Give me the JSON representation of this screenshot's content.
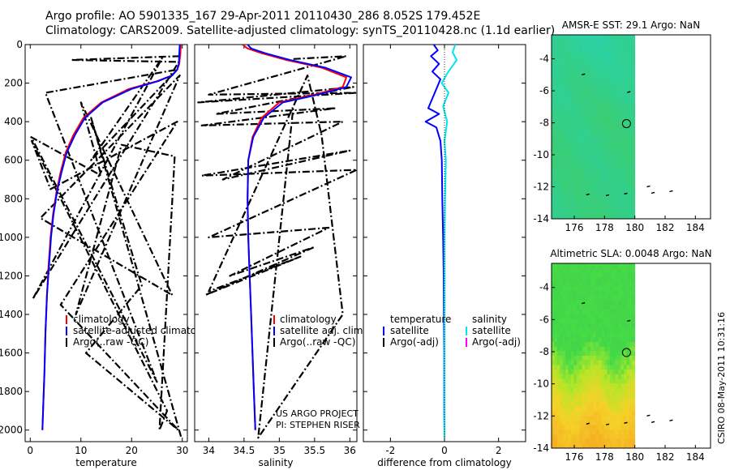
{
  "header": {
    "line1": "Argo profile: AO 5901335_167 29-Apr-2011 20110430_286 8.052S 179.452E",
    "line2": "Climatology: CARS2009. Satellite-adjusted climatology: synTS_20110428.nc (1.1d earlier)"
  },
  "footer": {
    "project": "US ARGO PROJECT",
    "pi": "PI: STEPHEN RISER",
    "stamp": "CSIRO 08-May-2011 10:31:16"
  },
  "colors": {
    "climatology": "#ff0000",
    "satellite": "#0000ff",
    "argo": "#000000",
    "sat_salinity": "#00e5ee",
    "argo_salinity": "#ff00ff"
  },
  "chart_data": [
    {
      "id": "temperature",
      "type": "line",
      "xlabel": "temperature",
      "xlim": [
        -1,
        31
      ],
      "ylim": [
        2060,
        0
      ],
      "xticks": [
        0,
        10,
        20,
        30
      ],
      "yticks": [
        0,
        200,
        400,
        600,
        800,
        1000,
        1200,
        1400,
        1600,
        1800,
        2000
      ],
      "legend": [
        "climatology",
        "satellite-adjusted climatology",
        "Argo(..raw -QC)"
      ],
      "series": [
        {
          "name": "climatology",
          "color": "#ff0000",
          "x": [
            29.7,
            29.6,
            29.4,
            29.0,
            28.0,
            25.0,
            19.5,
            14.0,
            10.5,
            8.5,
            7.0,
            6.0,
            5.2,
            4.5,
            4.0,
            3.6,
            3.3,
            3.0,
            2.8,
            2.6,
            2.4
          ],
          "y": [
            0,
            50,
            100,
            130,
            160,
            190,
            230,
            300,
            380,
            470,
            560,
            660,
            760,
            880,
            1000,
            1150,
            1300,
            1500,
            1700,
            1850,
            2000
          ]
        },
        {
          "name": "satellite-adjusted climatology",
          "color": "#0000ff",
          "x": [
            29.5,
            29.4,
            29.3,
            29.0,
            28.0,
            25.2,
            20.0,
            14.3,
            10.8,
            8.8,
            7.2,
            6.2,
            5.3,
            4.6,
            4.1,
            3.7,
            3.3,
            3.0,
            2.8,
            2.6,
            2.4
          ],
          "y": [
            0,
            50,
            100,
            130,
            160,
            190,
            230,
            300,
            380,
            470,
            560,
            660,
            760,
            880,
            1000,
            1150,
            1300,
            1500,
            1700,
            1850,
            2000
          ]
        },
        {
          "name": "Argo(..raw -QC)",
          "color": "#000000",
          "x": [
            29.5,
            8.0,
            29.3,
            0.5,
            26.0,
            12.0,
            29.0,
            3.0,
            25.0,
            0.2,
            14.0,
            10.0,
            28.0,
            2.0,
            29.5,
            9.0,
            18.0,
            28.5,
            25.5,
            27.0,
            0.3,
            4.0,
            29.0,
            6.0,
            29.2,
            11.0,
            22.0,
            12.0,
            29.8
          ],
          "y": [
            60,
            80,
            90,
            1320,
            70,
            600,
            130,
            250,
            1750,
            480,
            680,
            300,
            1300,
            900,
            160,
            1400,
            520,
            580,
            2000,
            1900,
            500,
            750,
            400,
            1350,
            2000,
            1600,
            1250,
            380,
            2040
          ]
        }
      ]
    },
    {
      "id": "salinity",
      "type": "line",
      "xlabel": "salinity",
      "xlim": [
        33.8,
        36.1
      ],
      "ylim": [
        2060,
        0
      ],
      "xticks": [
        34,
        34.5,
        35,
        35.5,
        36
      ],
      "xtick_labels": [
        "34",
        "34.5",
        "35",
        "35.5",
        "36"
      ],
      "legend": [
        "climatology",
        "satellite adj. clim.",
        "Argo(..raw -QC)"
      ],
      "series": [
        {
          "name": "climatology",
          "color": "#ff0000",
          "x": [
            34.48,
            34.55,
            34.75,
            35.1,
            35.6,
            35.95,
            35.9,
            35.5,
            35.0,
            34.75,
            34.62,
            34.56,
            34.55,
            34.56,
            34.58,
            34.6,
            34.62,
            34.64,
            34.66
          ],
          "y": [
            0,
            20,
            45,
            80,
            120,
            170,
            220,
            260,
            300,
            380,
            480,
            600,
            800,
            1000,
            1200,
            1400,
            1600,
            1800,
            2000
          ]
        },
        {
          "name": "satellite adj. clim.",
          "color": "#0000ff",
          "x": [
            34.55,
            34.6,
            34.8,
            35.15,
            35.65,
            36.02,
            35.95,
            35.55,
            35.05,
            34.78,
            34.63,
            34.56,
            34.55,
            34.56,
            34.58,
            34.6,
            34.62,
            34.64,
            34.66
          ],
          "y": [
            0,
            20,
            45,
            80,
            120,
            170,
            220,
            260,
            300,
            380,
            480,
            600,
            800,
            1000,
            1200,
            1400,
            1600,
            1800,
            2000
          ]
        },
        {
          "name": "Argo(..raw -QC)",
          "color": "#000000",
          "x": [
            35.2,
            35.95,
            34.0,
            36.1,
            33.85,
            36.05,
            34.1,
            35.8,
            33.9,
            35.9,
            34.2,
            36.0,
            33.9,
            36.1,
            34.0,
            35.7,
            34.3,
            35.5,
            33.95,
            35.3,
            34.0,
            35.4,
            35.6,
            35.9,
            34.7,
            35.2
          ],
          "y": [
            75,
            60,
            260,
            250,
            300,
            220,
            360,
            330,
            420,
            400,
            700,
            550,
            680,
            650,
            1000,
            950,
            1200,
            1050,
            1300,
            1100,
            1280,
            160,
            470,
            1400,
            2040,
            320
          ]
        }
      ]
    },
    {
      "id": "difference",
      "type": "line",
      "xlabel": "difference from climatology",
      "xlim": [
        -3,
        3
      ],
      "ylim": [
        2060,
        0
      ],
      "xticks": [
        -2,
        0,
        2
      ],
      "legend": {
        "headers": [
          "temperature",
          "salinity"
        ],
        "left": [
          "satellite",
          "Argo(-adj)"
        ],
        "right": [
          "satellite",
          "Argo(-adj)"
        ]
      },
      "series": [
        {
          "name": "temperature satellite",
          "color": "#0000ff",
          "x": [
            -0.4,
            -0.25,
            -0.5,
            -0.2,
            -0.45,
            -0.15,
            -0.3,
            -0.6,
            -0.2,
            -0.7,
            -0.3,
            -0.15,
            -0.1,
            -0.08,
            -0.05,
            -0.03,
            -0.02,
            -0.01,
            -0.01,
            -0.01,
            0.0
          ],
          "y": [
            0,
            30,
            60,
            100,
            140,
            180,
            230,
            330,
            360,
            400,
            430,
            500,
            600,
            800,
            1000,
            1200,
            1400,
            1600,
            1800,
            1900,
            2040
          ]
        },
        {
          "name": "salinity satellite",
          "color": "#00e5ee",
          "x": [
            0.4,
            0.3,
            0.45,
            0.3,
            0.1,
            -0.1,
            0.15,
            -0.05,
            0.1,
            0.0,
            0.05,
            0.02,
            0.0,
            0.0,
            0.0,
            0.0,
            0.0,
            0.0
          ],
          "y": [
            0,
            40,
            80,
            110,
            150,
            200,
            250,
            320,
            400,
            500,
            600,
            800,
            1000,
            1200,
            1400,
            1600,
            1800,
            2040
          ]
        }
      ]
    },
    {
      "id": "sst_map",
      "type": "heatmap",
      "title": "AMSR-E SST: 29.1  Argo: NaN",
      "xlim": [
        174.5,
        185
      ],
      "ylim": [
        -14,
        -2.5
      ],
      "xticks": [
        176,
        178,
        180,
        182,
        184
      ],
      "yticks": [
        -4,
        -6,
        -8,
        -10,
        -12,
        -14
      ],
      "data_lon_max": 180,
      "float_position": [
        179.45,
        -8.05
      ]
    },
    {
      "id": "sla_map",
      "type": "heatmap",
      "title": "Altimetric SLA: 0.0048  Argo: NaN",
      "xlim": [
        174.5,
        185
      ],
      "ylim": [
        -14,
        -2.5
      ],
      "xticks": [
        176,
        178,
        180,
        182,
        184
      ],
      "yticks": [
        -4,
        -6,
        -8,
        -10,
        -12,
        -14
      ],
      "data_lon_max": 180,
      "float_position": [
        179.45,
        -8.05
      ]
    }
  ]
}
